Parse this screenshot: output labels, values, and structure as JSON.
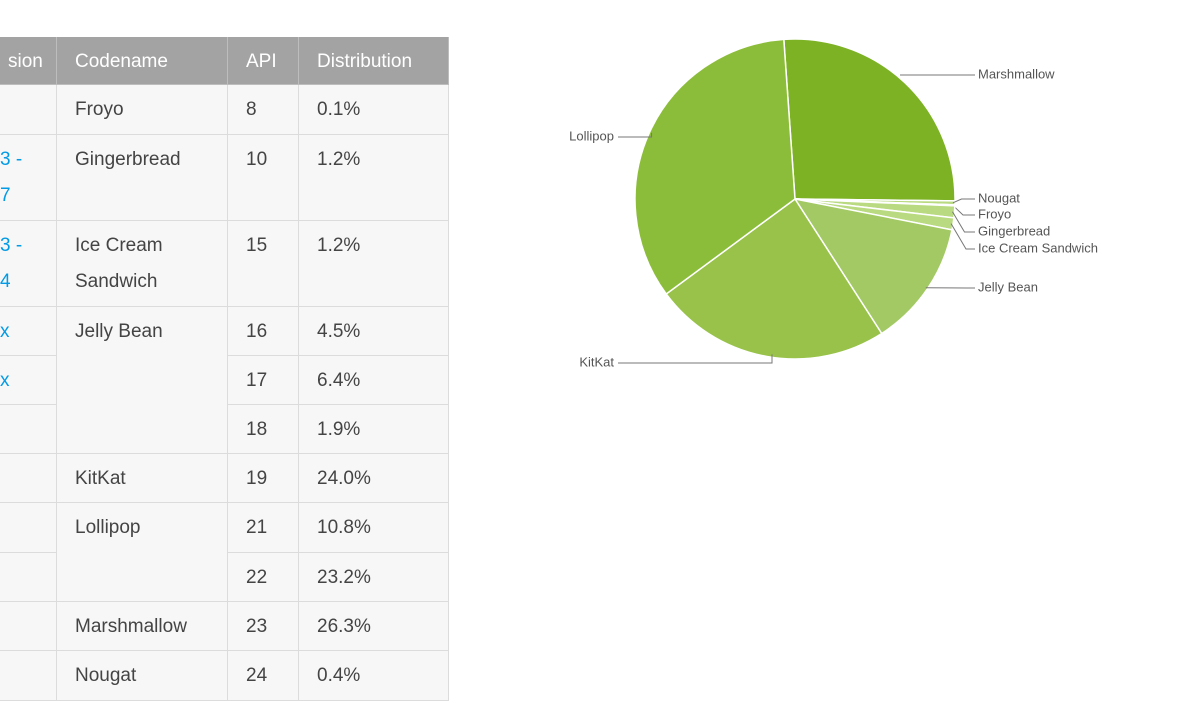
{
  "table": {
    "header": [
      "sion",
      "Codename",
      "API",
      "Distribution"
    ],
    "rows": [
      {
        "codename": "Froyo",
        "api": "8",
        "distribution": "0.1%"
      },
      {
        "version": [
          "3 -",
          "7"
        ],
        "codename": "Gingerbread",
        "api": "10",
        "distribution": "1.2%"
      },
      {
        "version": [
          "3 -",
          "4"
        ],
        "codename": "Ice Cream Sandwich",
        "api": "15",
        "distribution": "1.2%"
      },
      {
        "version": [
          "x"
        ],
        "codename": "Jelly Bean",
        "api": "16",
        "distribution": "4.5%"
      },
      {
        "version": [
          "x"
        ],
        "api": "17",
        "distribution": "6.4%"
      },
      {
        "api": "18",
        "distribution": "1.9%"
      },
      {
        "codename": "KitKat",
        "api": "19",
        "distribution": "24.0%"
      },
      {
        "codename": "Lollipop",
        "api": "21",
        "distribution": "10.8%"
      },
      {
        "api": "22",
        "distribution": "23.2%"
      },
      {
        "codename": "Marshmallow",
        "api": "23",
        "distribution": "26.3%"
      },
      {
        "codename": "Nougat",
        "api": "24",
        "distribution": "0.4%"
      }
    ]
  },
  "chart_data": {
    "type": "pie",
    "categories": [
      "Marshmallow",
      "Nougat",
      "Froyo",
      "Gingerbread",
      "Ice Cream Sandwich",
      "Jelly Bean",
      "KitKat",
      "Lollipop"
    ],
    "values": [
      26.3,
      0.4,
      0.1,
      1.2,
      1.2,
      12.8,
      24.0,
      34.0
    ],
    "colors": [
      "#7cb223",
      "#b9da80",
      "#b9da80",
      "#b9da80",
      "#b9da80",
      "#a3c964",
      "#98c24a",
      "#8cbd3a"
    ]
  }
}
